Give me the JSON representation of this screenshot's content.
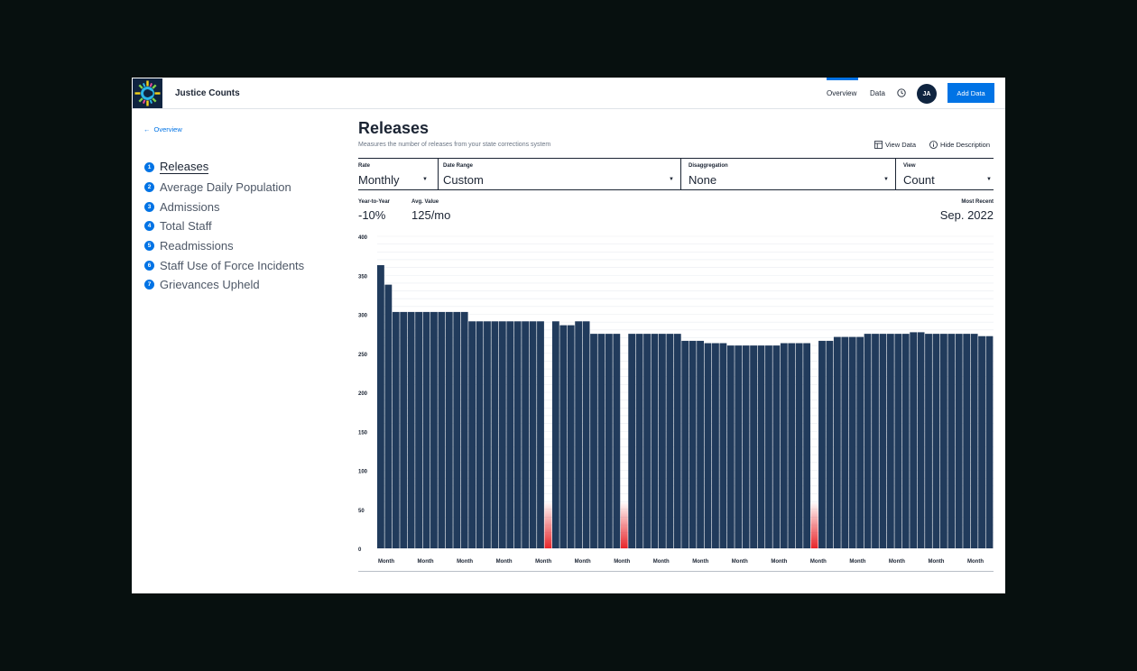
{
  "header": {
    "app_title": "Justice Counts",
    "nav": [
      {
        "label": "Overview",
        "active": true
      },
      {
        "label": "Data",
        "active": false
      }
    ],
    "history_icon": "clock-icon",
    "avatar_initials": "JA",
    "add_button_label": "Add Data"
  },
  "colors": {
    "brand_navy": "#0f2440",
    "accent_blue": "#0073e5",
    "bar_fill": "#213b5c",
    "missing_gradient": "#e8252a"
  },
  "sidebar": {
    "back_label": "Overview",
    "items": [
      {
        "number": "1",
        "label": "Releases",
        "active": true
      },
      {
        "number": "2",
        "label": "Average Daily Population",
        "active": false
      },
      {
        "number": "3",
        "label": "Admissions",
        "active": false
      },
      {
        "number": "4",
        "label": "Total Staff",
        "active": false
      },
      {
        "number": "5",
        "label": "Readmissions",
        "active": false
      },
      {
        "number": "6",
        "label": "Staff Use of Force Incidents",
        "active": false
      },
      {
        "number": "7",
        "label": "Grievances Upheld",
        "active": false
      }
    ]
  },
  "main": {
    "title": "Releases",
    "description": "Measures the number of releases from your state corrections system",
    "view_data_label": "View Data",
    "hide_description_label": "Hide Description",
    "filters": {
      "rate": {
        "label": "Rate",
        "value": "Monthly"
      },
      "date_range": {
        "label": "Date Range",
        "value": "Custom"
      },
      "disaggregation": {
        "label": "Disaggregation",
        "value": "None"
      },
      "view": {
        "label": "View",
        "value": "Count"
      }
    },
    "stats": {
      "yoy_label": "Year-to-Year",
      "yoy_value": "-10%",
      "avg_label": "Avg. Value",
      "avg_value": "125/mo",
      "recent_label": "Most Recent",
      "recent_value": "Sep. 2022"
    }
  },
  "chart_data": {
    "type": "bar",
    "title": "",
    "xlabel": "",
    "ylabel": "",
    "ylim": [
      0,
      400
    ],
    "yticks": [
      0,
      50,
      100,
      150,
      200,
      250,
      300,
      350,
      400
    ],
    "grid": true,
    "legend": "none",
    "values": [
      363,
      338,
      303,
      303,
      303,
      303,
      303,
      303,
      303,
      303,
      303,
      303,
      291,
      291,
      291,
      291,
      291,
      291,
      291,
      291,
      291,
      291,
      null,
      291,
      286,
      286,
      291,
      291,
      275,
      275,
      275,
      275,
      null,
      275,
      275,
      275,
      275,
      275,
      275,
      275,
      266,
      266,
      266,
      263,
      263,
      263,
      260,
      260,
      260,
      260,
      260,
      260,
      260,
      263,
      263,
      263,
      263,
      null,
      266,
      266,
      271,
      271,
      271,
      271,
      275,
      275,
      275,
      275,
      275,
      275,
      277,
      277,
      275,
      275,
      275,
      275,
      275,
      275,
      275,
      272,
      272
    ],
    "missing_indices": [
      22,
      32,
      57
    ],
    "tick_labels": [
      "Month",
      "Month",
      "Month",
      "Month",
      "Month",
      "Month",
      "Month",
      "Month",
      "Month",
      "Month",
      "Month",
      "Month",
      "Month",
      "Month",
      "Month",
      "Month"
    ]
  }
}
